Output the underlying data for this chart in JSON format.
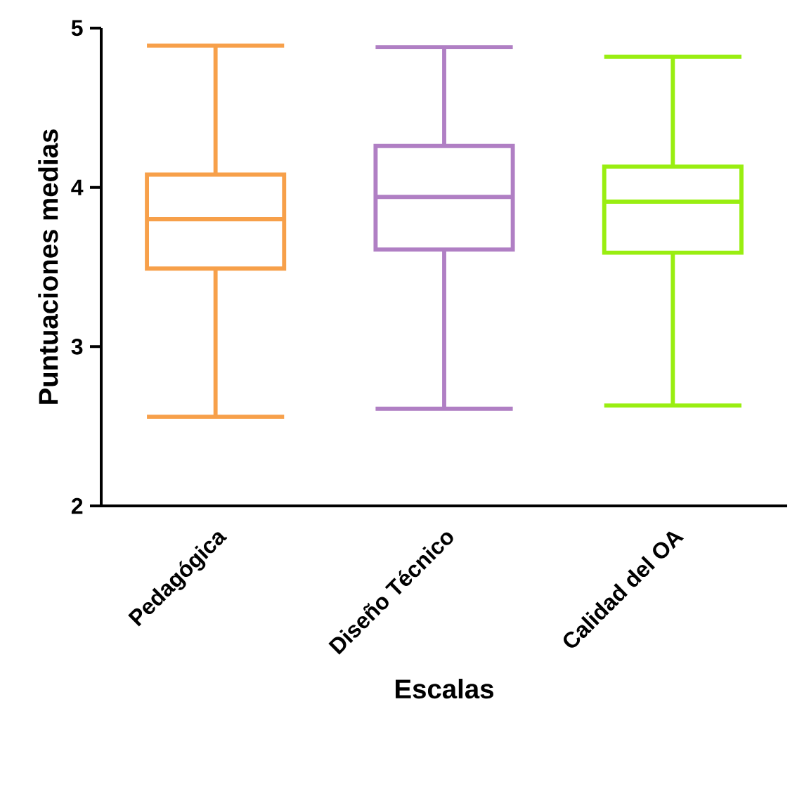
{
  "chart_data": {
    "type": "box",
    "xlabel": "Escalas",
    "ylabel": "Puntuaciones medias",
    "categories": [
      "Pedagógica",
      "Diseño Técnico",
      "Calidad del OA"
    ],
    "boxes": [
      {
        "low": 2.56,
        "q1": 3.49,
        "median": 3.8,
        "q3": 4.08,
        "high": 4.89
      },
      {
        "low": 2.61,
        "q1": 3.61,
        "median": 3.94,
        "q3": 4.26,
        "high": 4.88
      },
      {
        "low": 2.63,
        "q1": 3.59,
        "median": 3.91,
        "q3": 4.13,
        "high": 4.82
      }
    ],
    "colors": [
      "#f7a04a",
      "#b07fc4",
      "#99ee11"
    ],
    "ylim": [
      2,
      5
    ],
    "yticks": [
      2,
      3,
      4,
      5
    ]
  }
}
